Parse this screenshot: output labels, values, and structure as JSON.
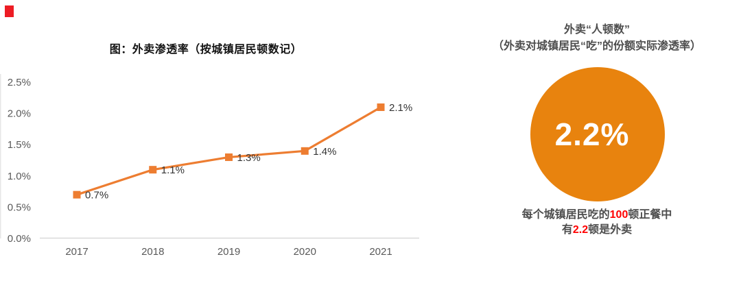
{
  "page": {
    "background": "#ffffff"
  },
  "decor": {
    "red_square_color": "#ED1C24"
  },
  "chart_data": {
    "type": "line",
    "title": "图：外卖渗透率（按城镇居民顿数记）",
    "categories": [
      "2017",
      "2018",
      "2019",
      "2020",
      "2021"
    ],
    "values": [
      0.7,
      1.1,
      1.3,
      1.4,
      2.1
    ],
    "point_labels": [
      "0.7%",
      "1.1%",
      "1.3%",
      "1.4%",
      "2.1%"
    ],
    "y_ticks": [
      "0.0%",
      "0.5%",
      "1.0%",
      "1.5%",
      "2.0%",
      "2.5%"
    ],
    "ylim": [
      0,
      2.5
    ],
    "xlabel": "",
    "ylabel": "",
    "grid": false,
    "legend": "none",
    "line_color": "#ED7D31",
    "marker": "square",
    "axis_text_color": "#595959",
    "data_label_color": "#333333",
    "baseline_color": "#D9D9D9"
  },
  "right_panel": {
    "title_line1": "外卖“人顿数”",
    "title_line2": "（外卖对城镇居民“吃”的份额实际渗透率）",
    "circle": {
      "value": "2.2%",
      "color": "#E8830E"
    },
    "caption": {
      "line1_pre": "每个城镇居民吃的",
      "line1_highlight": "100",
      "line1_post": "顿正餐中",
      "line2_pre": "有",
      "line2_highlight": "2.2",
      "line2_post": "顿是外卖",
      "highlight_color": "#FF0000"
    }
  }
}
